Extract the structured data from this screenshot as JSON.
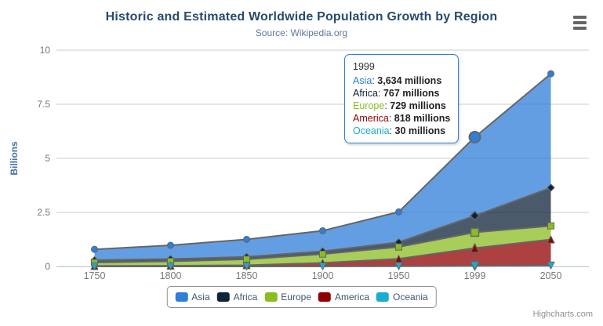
{
  "chart": {
    "title": "Historic and Estimated Worldwide Population Growth by Region",
    "subtitle": "Source: Wikipedia.org",
    "credits": "Highcharts.com"
  },
  "chart_data": {
    "type": "area",
    "stacking": "normal",
    "title": "Historic and Estimated Worldwide Population Growth by Region",
    "subtitle": "Source: Wikipedia.org",
    "xlabel": "",
    "ylabel": "Billions",
    "categories": [
      "1750",
      "1800",
      "1850",
      "1900",
      "1950",
      "1999",
      "2050"
    ],
    "yticks": [
      "0",
      "2.5",
      "5",
      "7.5",
      "10"
    ],
    "ylim": [
      0,
      10
    ],
    "grid": true,
    "legend_position": "bottom",
    "value_unit": "millions",
    "hover_index": 5,
    "series": [
      {
        "name": "Asia",
        "color": "#2f7ed8",
        "marker": "circle",
        "values": [
          502,
          635,
          809,
          947,
          1402,
          3634,
          5268
        ]
      },
      {
        "name": "Africa",
        "color": "#0d233a",
        "marker": "diamond",
        "values": [
          106,
          107,
          111,
          133,
          221,
          767,
          1766
        ]
      },
      {
        "name": "Europe",
        "color": "#8bbc21",
        "marker": "square",
        "values": [
          163,
          203,
          276,
          408,
          547,
          729,
          628
        ]
      },
      {
        "name": "America",
        "color": "#910000",
        "marker": "triangle",
        "values": [
          18,
          31,
          54,
          156,
          339,
          818,
          1201
        ]
      },
      {
        "name": "Oceania",
        "color": "#1aadce",
        "marker": "triangle-down",
        "values": [
          2,
          2,
          2,
          6,
          13,
          30,
          46
        ]
      }
    ]
  },
  "tooltip": {
    "header": "1999",
    "rows": [
      {
        "name": "Asia",
        "color": "#2f7ed8",
        "value": "3,634 millions"
      },
      {
        "name": "Africa",
        "color": "#0d233a",
        "value": "767 millions"
      },
      {
        "name": "Europe",
        "color": "#8bbc21",
        "value": "729 millions"
      },
      {
        "name": "America",
        "color": "#910000",
        "value": "818 millions"
      },
      {
        "name": "Oceania",
        "color": "#1aadce",
        "value": "30 millions"
      }
    ]
  },
  "legend": {
    "items": [
      {
        "label": "Asia",
        "color": "#2f7ed8"
      },
      {
        "label": "Africa",
        "color": "#0d233a"
      },
      {
        "label": "Europe",
        "color": "#8bbc21"
      },
      {
        "label": "America",
        "color": "#910000"
      },
      {
        "label": "Oceania",
        "color": "#1aadce"
      }
    ]
  },
  "ui_colors": {
    "grid_line": "#cccccc",
    "axis_line": "#c0d0e0",
    "tick_label": "#777777",
    "yaxis_title": "#4572A7",
    "series_outline": "#666666"
  }
}
